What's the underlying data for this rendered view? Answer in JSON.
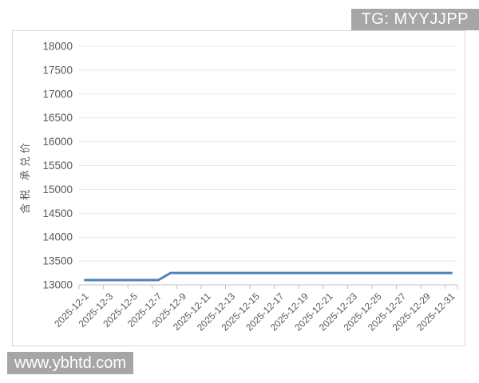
{
  "badge": {
    "label": "TG: MYYJJPP"
  },
  "watermark": {
    "label": "www.ybhtd.com"
  },
  "chart_data": {
    "type": "line",
    "title": "",
    "xlabel": "",
    "ylabel": "含税 承兑价",
    "x": [
      "2025-12-1",
      "2025-12-2",
      "2025-12-3",
      "2025-12-4",
      "2025-12-5",
      "2025-12-6",
      "2025-12-7",
      "2025-12-8",
      "2025-12-9",
      "2025-12-10",
      "2025-12-11",
      "2025-12-12",
      "2025-12-13",
      "2025-12-14",
      "2025-12-15",
      "2025-12-16",
      "2025-12-17",
      "2025-12-18",
      "2025-12-19",
      "2025-12-20",
      "2025-12-21",
      "2025-12-22",
      "2025-12-23",
      "2025-12-24",
      "2025-12-25",
      "2025-12-26",
      "2025-12-27",
      "2025-12-28",
      "2025-12-29",
      "2025-12-30",
      "2025-12-31"
    ],
    "values": [
      13100,
      13100,
      13100,
      13100,
      13100,
      13100,
      13100,
      13250,
      13250,
      13250,
      13250,
      13250,
      13250,
      13250,
      13250,
      13250,
      13250,
      13250,
      13250,
      13250,
      13250,
      13250,
      13250,
      13250,
      13250,
      13250,
      13250,
      13250,
      13250,
      13250,
      13250
    ],
    "ylim": [
      13000,
      18000
    ],
    "yticks": [
      13000,
      13500,
      14000,
      14500,
      15000,
      15500,
      16000,
      16500,
      17000,
      17500,
      18000
    ],
    "xtick_labels": [
      "2025-12-1",
      "2025-12-3",
      "2025-12-5",
      "2025-12-7",
      "2025-12-9",
      "2025-12-11",
      "2025-12-13",
      "2025-12-15",
      "2025-12-17",
      "2025-12-19",
      "2025-12-21",
      "2025-12-23",
      "2025-12-25",
      "2025-12-27",
      "2025-12-29",
      "2025-12-31"
    ],
    "grid": "horizontal",
    "legend": "none",
    "colors": {
      "line": "#4f81bd",
      "grid": "#e8e8e8",
      "axis": "#c0c0c0",
      "label": "#595959",
      "badge_bg": "#a6a6a6",
      "badge_text": "#ffffff",
      "chart_border": "#d9d9d9",
      "background": "#ffffff"
    }
  }
}
